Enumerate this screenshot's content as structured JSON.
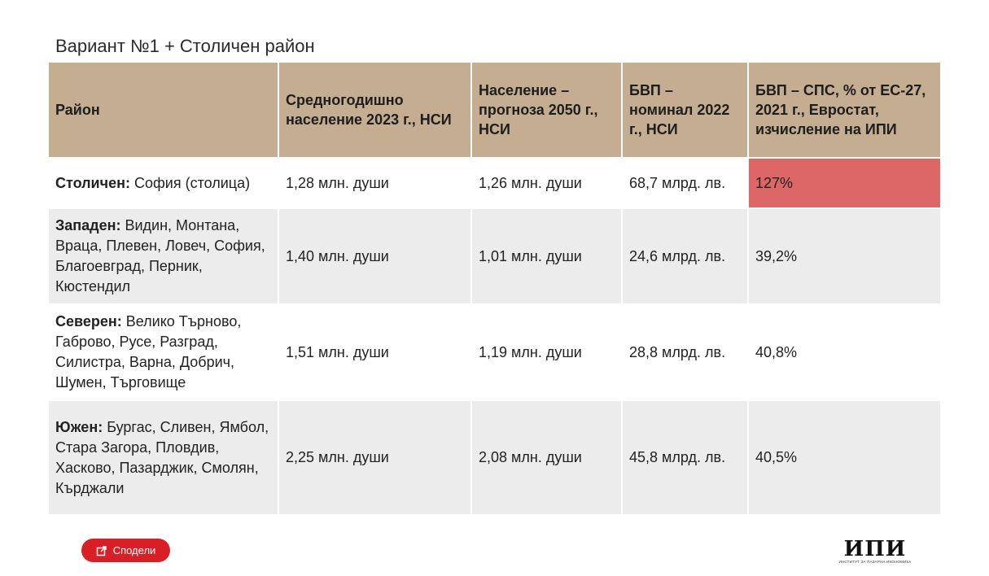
{
  "title": "Вариант №1 + Столичен район",
  "table": {
    "headers": [
      "Район",
      "Средногодишно население 2023 г., НСИ",
      "Население – прогноза 2050 г., НСИ",
      "БВП – номинал 2022 г., НСИ",
      "БВП – СПС, % от ЕС-27, 2021 г., Евростат, изчисление на ИПИ"
    ],
    "rows": [
      {
        "region": "Столичен:",
        "areas": " София (столица)",
        "population_2023": "1,28 млн. души",
        "population_2050": "1,26 млн. души",
        "gdp_2022": "68,7 млрд. лв.",
        "gdp_pps": "127%"
      },
      {
        "region": "Западен:",
        "areas": " Видин, Монтана, Враца, Плевен, Ловеч, София, Благоевград, Перник, Кюстендил",
        "population_2023": "1,40 млн. души",
        "population_2050": "1,01 млн. души",
        "gdp_2022": "24,6 млрд. лв.",
        "gdp_pps": "39,2%"
      },
      {
        "region": "Северен:",
        "areas": " Велико Търново, Габрово, Русе, Разград, Силистра, Варна, Добрич, Шумен, Търговище",
        "population_2023": "1,51 млн. души",
        "population_2050": "1,19 млн. души",
        "gdp_2022": "28,8 млрд. лв.",
        "gdp_pps": "40,8%"
      },
      {
        "region": "Южен:",
        "areas": " Бургас, Сливен, Ямбол, Стара Загора, Пловдив, Хасково, Пазарджик, Смолян, Кърджали",
        "population_2023": "2,25 млн. души",
        "population_2050": "2,08 млн. души",
        "gdp_2022": "45,8 млрд. лв.",
        "gdp_pps": "40,5%"
      }
    ]
  },
  "share_button": {
    "label": "Сподели",
    "icon": "share-icon"
  },
  "logo": {
    "mark": "ИПИ",
    "subtitle": "ИНСТИТУТ ЗА ПАЗАРНА ИКОНОМИКА"
  },
  "colors": {
    "header_bg": "#c4ad90",
    "row_alt_bg": "#ececec",
    "highlight": "#dd6666",
    "button_bg": "#d81f26"
  }
}
